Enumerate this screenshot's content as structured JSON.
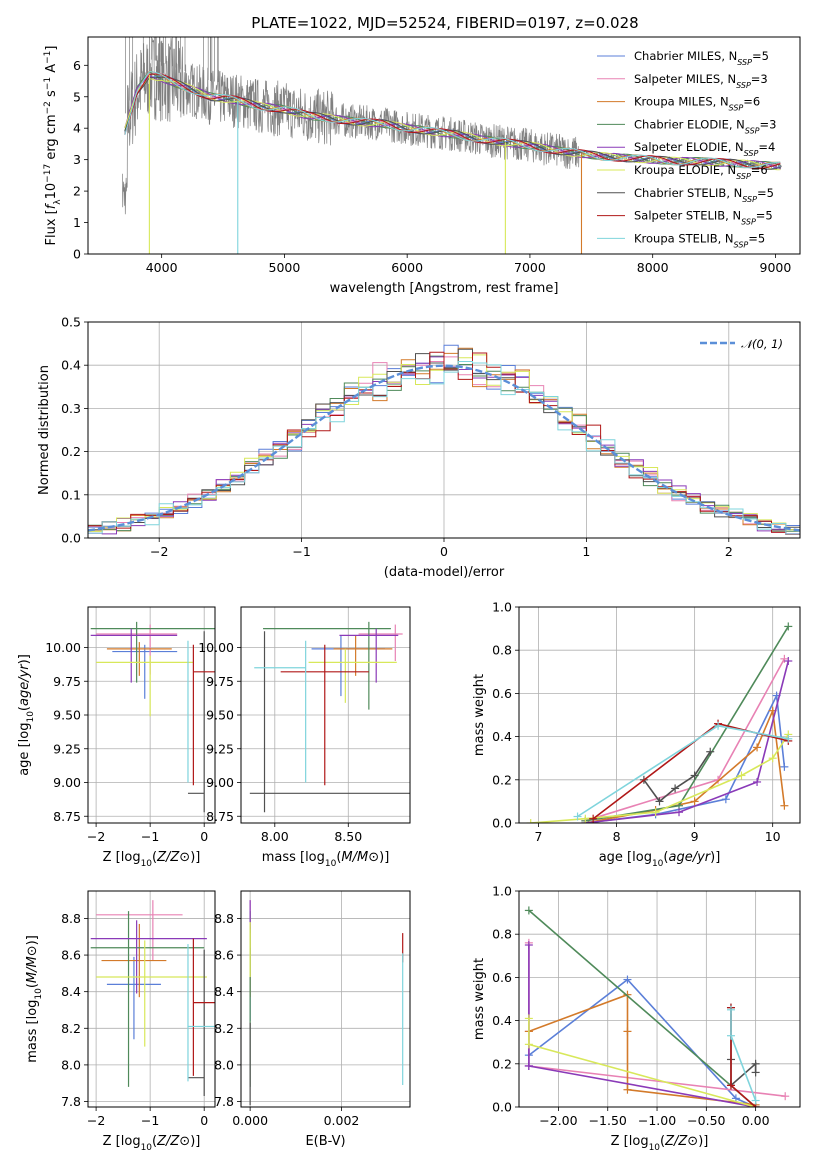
{
  "figure_title": "PLATE=1022, MJD=52524, FIBERID=0197, z=0.028",
  "colors": {
    "Chabrier MILES": "#5b7fd8",
    "Salpeter MILES": "#e882b4",
    "Kroupa MILES": "#d37a2a",
    "Chabrier ELODIE": "#4f8a5a",
    "Salpeter ELODIE": "#8a3ab8",
    "Kroupa ELODIE": "#d8e85a",
    "Chabrier STELIB": "#505050",
    "Salpeter STELIB": "#b01818",
    "Kroupa STELIB": "#7fd4dc",
    "data": "#808080"
  },
  "legend_spectrum": [
    {
      "name": "Chabrier MILES",
      "label": "Chabrier MILES, N",
      "sub": "SSP",
      "tail": "=5"
    },
    {
      "name": "Salpeter MILES",
      "label": "Salpeter MILES, N",
      "sub": "SSP",
      "tail": "=3"
    },
    {
      "name": "Kroupa MILES",
      "label": "Kroupa MILES, N",
      "sub": "SSP",
      "tail": "=6"
    },
    {
      "name": "Chabrier ELODIE",
      "label": "Chabrier ELODIE, N",
      "sub": "SSP",
      "tail": "=3"
    },
    {
      "name": "Salpeter ELODIE",
      "label": "Salpeter ELODIE, N",
      "sub": "SSP",
      "tail": "=4"
    },
    {
      "name": "Kroupa ELODIE",
      "label": "Kroupa ELODIE, N",
      "sub": "SSP",
      "tail": "=6"
    },
    {
      "name": "Chabrier STELIB",
      "label": "Chabrier STELIB, N",
      "sub": "SSP",
      "tail": "=5"
    },
    {
      "name": "Salpeter STELIB",
      "label": "Salpeter STELIB, N",
      "sub": "SSP",
      "tail": "=5"
    },
    {
      "name": "Kroupa STELIB",
      "label": "Kroupa STELIB, N",
      "sub": "SSP",
      "tail": "=5"
    }
  ],
  "chart_data": [
    {
      "id": "spectrum",
      "type": "line",
      "title": "PLATE=1022, MJD=52524, FIBERID=0197, z=0.028",
      "xlabel": "wavelength [Angstrom, rest frame]",
      "ylabel_parts": [
        "Flux [",
        "f",
        "λ",
        "10",
        "−17",
        " erg cm",
        "−2",
        " s",
        "−1",
        " A",
        "−1",
        "]"
      ],
      "xlim": [
        3400,
        9200
      ],
      "ylim": [
        0,
        6.9
      ],
      "xticks": [
        4000,
        5000,
        6000,
        7000,
        8000,
        9000
      ],
      "yticks": [
        0,
        1,
        2,
        3,
        4,
        5,
        6
      ],
      "continuum_anchor_x": [
        3700,
        3800,
        3900,
        4000,
        4200,
        4400,
        4600,
        4800,
        5000,
        5200,
        5400,
        5600,
        5800,
        6000,
        6200,
        6400,
        6600,
        6800,
        7000,
        7200,
        7400,
        7600,
        7800,
        8000,
        8200,
        8400,
        8600,
        8800,
        9000
      ],
      "continuum_anchor_y": [
        3.9,
        5.2,
        5.7,
        5.6,
        5.3,
        5.0,
        4.9,
        4.7,
        4.6,
        4.4,
        4.3,
        4.2,
        4.15,
        4.0,
        3.9,
        3.8,
        3.65,
        3.55,
        3.45,
        3.3,
        3.2,
        3.1,
        3.05,
        3.0,
        2.95,
        2.95,
        2.9,
        2.85,
        2.8
      ],
      "model_cutoffs": [
        {
          "series": "Kroupa MILES",
          "x": 7420
        },
        {
          "series": "Kroupa ELODIE",
          "x": 6800
        },
        {
          "series": "Kroupa STELIB",
          "x": 4620
        },
        {
          "series": "Kroupa ELODIE",
          "x": 3900
        }
      ]
    },
    {
      "id": "residuals",
      "type": "histogram",
      "xlabel": "(data-model)/error",
      "ylabel": "Normed distribution",
      "xlim": [
        -2.5,
        2.5
      ],
      "ylim": [
        0,
        0.5
      ],
      "xticks": [
        -2,
        -1,
        0,
        1,
        2
      ],
      "yticks": [
        0.0,
        0.1,
        0.2,
        0.3,
        0.4,
        0.5
      ],
      "legend": "𝒩(0, 1)",
      "bin_width": 0.1,
      "grid": true
    },
    {
      "id": "age_vs_Z",
      "type": "errorbar",
      "xlabel": "Z [log10(Z/Z⊙)]",
      "ylabel": "age  [log10(age/yr)]",
      "xlim": [
        -2.15,
        0.2
      ],
      "ylim": [
        8.7,
        10.3
      ],
      "xticks": [
        -2,
        -1,
        0
      ],
      "yticks": [
        8.75,
        9.0,
        9.25,
        9.5,
        9.75,
        10.0
      ],
      "points": [
        {
          "series": "Chabrier MILES",
          "x": -1.1,
          "xerr": [
            0.6,
            0.6
          ],
          "y": 9.97,
          "yerr": [
            0.35,
            0.05
          ]
        },
        {
          "series": "Salpeter MILES",
          "x": -1.0,
          "xerr": [
            1.0,
            0.5
          ],
          "y": 10.1,
          "yerr": [
            0.3,
            0.07
          ]
        },
        {
          "series": "Kroupa MILES",
          "x": -1.2,
          "xerr": [
            0.6,
            0.6
          ],
          "y": 9.99,
          "yerr": [
            0.2,
            0.05
          ]
        },
        {
          "series": "Chabrier ELODIE",
          "x": -1.25,
          "xerr": [
            0.85,
            1.45
          ],
          "y": 10.14,
          "yerr": [
            0.4,
            0.05
          ]
        },
        {
          "series": "Salpeter ELODIE",
          "x": -1.35,
          "xerr": [
            0.75,
            0.85
          ],
          "y": 10.09,
          "yerr": [
            0.35,
            0.05
          ]
        },
        {
          "series": "Kroupa ELODIE",
          "x": -1.0,
          "xerr": [
            1.0,
            0.8
          ],
          "y": 9.89,
          "yerr": [
            0.4,
            0.05
          ]
        },
        {
          "series": "Chabrier STELIB",
          "x": 0.0,
          "xerr": [
            0.3,
            0.0
          ],
          "y": 8.92,
          "yerr": [
            0.14,
            1.2
          ]
        },
        {
          "series": "Salpeter STELIB",
          "x": -0.2,
          "xerr": [
            0.0,
            0.4
          ],
          "y": 9.82,
          "yerr": [
            0.84,
            0.2
          ]
        },
        {
          "series": "Kroupa STELIB",
          "x": -0.3,
          "xerr": [
            0.0,
            0.0
          ],
          "y": 9.85,
          "yerr": [
            0.85,
            0.2
          ]
        }
      ]
    },
    {
      "id": "age_vs_mass",
      "type": "errorbar",
      "xlabel": "mass [log10(M/M⊙)]",
      "ylabel": "",
      "xlim": [
        7.77,
        8.92
      ],
      "ylim": [
        8.7,
        10.3
      ],
      "xticks": [
        8.0,
        8.5
      ],
      "yticks": [
        8.75,
        9.0,
        9.25,
        9.5,
        9.75,
        10.0
      ],
      "points": [
        {
          "series": "Chabrier MILES",
          "x": 8.45,
          "xerr": [
            0.2,
            0.3
          ],
          "y": 9.99,
          "yerr": [
            0.35,
            0.1
          ]
        },
        {
          "series": "Salpeter MILES",
          "x": 8.82,
          "xerr": [
            0.25,
            0.05
          ],
          "y": 10.1,
          "yerr": [
            0.2,
            0.07
          ]
        },
        {
          "series": "Kroupa MILES",
          "x": 8.55,
          "xerr": [
            0.15,
            0.25
          ],
          "y": 9.99,
          "yerr": [
            0.2,
            0.1
          ]
        },
        {
          "series": "Chabrier ELODIE",
          "x": 8.64,
          "xerr": [
            0.72,
            0.15
          ],
          "y": 10.14,
          "yerr": [
            0.6,
            0.05
          ]
        },
        {
          "series": "Salpeter ELODIE",
          "x": 8.69,
          "xerr": [
            0.25,
            0.15
          ],
          "y": 10.09,
          "yerr": [
            0.35,
            0.05
          ]
        },
        {
          "series": "Kroupa ELODIE",
          "x": 8.48,
          "xerr": [
            0.25,
            0.35
          ],
          "y": 9.89,
          "yerr": [
            0.3,
            0.1
          ]
        },
        {
          "series": "Chabrier STELIB",
          "x": 7.93,
          "xerr": [
            0.1,
            1.05
          ],
          "y": 8.92,
          "yerr": [
            0.14,
            1.2
          ]
        },
        {
          "series": "Salpeter STELIB",
          "x": 8.34,
          "xerr": [
            0.3,
            0.3
          ],
          "y": 9.82,
          "yerr": [
            0.84,
            0.2
          ]
        },
        {
          "series": "Kroupa STELIB",
          "x": 8.21,
          "xerr": [
            0.35,
            0.0
          ],
          "y": 9.85,
          "yerr": [
            0.85,
            0.2
          ]
        }
      ]
    },
    {
      "id": "mass_weight_vs_age",
      "type": "line",
      "xlabel": "age  [log10(age/yr)]",
      "ylabel": "mass weight",
      "xlim": [
        6.75,
        10.35
      ],
      "ylim": [
        0,
        1.0
      ],
      "xticks": [
        7,
        8,
        9,
        10
      ],
      "yticks": [
        0.0,
        0.2,
        0.4,
        0.6,
        0.8,
        1.0
      ],
      "series": [
        {
          "series": "Chabrier MILES",
          "x": [
            7.6,
            8.5,
            9.4,
            10.05,
            10.15
          ],
          "y": [
            0.0,
            0.04,
            0.11,
            0.59,
            0.26
          ]
        },
        {
          "series": "Salpeter MILES",
          "x": [
            7.6,
            9.3,
            10.15
          ],
          "y": [
            0.01,
            0.2,
            0.76
          ]
        },
        {
          "series": "Kroupa MILES",
          "x": [
            7.6,
            8.5,
            9.0,
            9.8,
            10.0,
            10.15
          ],
          "y": [
            0.0,
            0.06,
            0.1,
            0.35,
            0.52,
            0.08
          ]
        },
        {
          "series": "Chabrier ELODIE",
          "x": [
            7.6,
            8.8,
            10.2
          ],
          "y": [
            0.01,
            0.08,
            0.91
          ]
        },
        {
          "series": "Salpeter ELODIE",
          "x": [
            7.6,
            8.8,
            9.8,
            10.2
          ],
          "y": [
            0.0,
            0.05,
            0.19,
            0.75
          ]
        },
        {
          "series": "Kroupa ELODIE",
          "x": [
            6.9,
            7.6,
            8.5,
            9.6,
            10.0,
            10.2
          ],
          "y": [
            0.0,
            0.02,
            0.05,
            0.22,
            0.3,
            0.41
          ]
        },
        {
          "series": "Chabrier STELIB",
          "x": [
            8.35,
            8.55,
            8.75,
            9.0,
            9.2
          ],
          "y": [
            0.2,
            0.1,
            0.16,
            0.22,
            0.33
          ]
        },
        {
          "series": "Salpeter STELIB",
          "x": [
            7.7,
            9.3,
            10.2
          ],
          "y": [
            0.02,
            0.46,
            0.38
          ]
        },
        {
          "series": "Kroupa STELIB",
          "x": [
            7.5,
            9.3,
            10.2
          ],
          "y": [
            0.03,
            0.45,
            0.39
          ]
        }
      ]
    },
    {
      "id": "mass_vs_Z",
      "type": "errorbar",
      "xlabel": "Z [log10(Z/Z⊙)]",
      "ylabel": "mass [log10(M/M⊙)]",
      "xlim": [
        -2.15,
        0.2
      ],
      "ylim": [
        7.77,
        8.95
      ],
      "xticks": [
        -2,
        -1,
        0
      ],
      "yticks": [
        7.8,
        8.0,
        8.2,
        8.4,
        8.6,
        8.8
      ],
      "points": [
        {
          "series": "Chabrier MILES",
          "x": -1.3,
          "xerr": [
            0.5,
            0.5
          ],
          "y": 8.44,
          "yerr": [
            0.3,
            0.15
          ]
        },
        {
          "series": "Salpeter MILES",
          "x": -0.95,
          "xerr": [
            1.05,
            0.55
          ],
          "y": 8.82,
          "yerr": [
            0.25,
            0.08
          ]
        },
        {
          "series": "Kroupa MILES",
          "x": -1.2,
          "xerr": [
            0.7,
            0.5
          ],
          "y": 8.57,
          "yerr": [
            0.2,
            0.2
          ]
        },
        {
          "series": "Chabrier ELODIE",
          "x": -1.4,
          "xerr": [
            0.7,
            1.4
          ],
          "y": 8.64,
          "yerr": [
            0.76,
            0.2
          ]
        },
        {
          "series": "Salpeter ELODIE",
          "x": -1.25,
          "xerr": [
            0.85,
            1.3
          ],
          "y": 8.69,
          "yerr": [
            0.3,
            0.1
          ]
        },
        {
          "series": "Kroupa ELODIE",
          "x": -1.1,
          "xerr": [
            0.9,
            1.15
          ],
          "y": 8.48,
          "yerr": [
            0.38,
            0.2
          ]
        },
        {
          "series": "Chabrier STELIB",
          "x": 0.0,
          "xerr": [
            0.3,
            0.0
          ],
          "y": 7.93,
          "yerr": [
            0.1,
            0.7
          ]
        },
        {
          "series": "Salpeter STELIB",
          "x": -0.2,
          "xerr": [
            0.0,
            0.4
          ],
          "y": 8.34,
          "yerr": [
            0.4,
            0.35
          ]
        },
        {
          "series": "Kroupa STELIB",
          "x": -0.3,
          "xerr": [
            0.0,
            0.5
          ],
          "y": 8.21,
          "yerr": [
            0.3,
            0.45
          ]
        }
      ]
    },
    {
      "id": "mass_vs_ebv",
      "type": "errorbar",
      "xlabel": "E(B-V)",
      "ylabel": "",
      "xlim": [
        -0.0002,
        0.0035
      ],
      "ylim": [
        7.77,
        8.95
      ],
      "xticks": [
        0.0,
        0.002
      ],
      "xticklabels": [
        "0.000",
        "0.002"
      ],
      "yticks": [
        7.8,
        8.0,
        8.2,
        8.4,
        8.6,
        8.8
      ],
      "points": [
        {
          "series": "Chabrier MILES",
          "x": 0.0,
          "y": 8.44,
          "yerr": [
            0.2,
            0.2
          ]
        },
        {
          "series": "Salpeter MILES",
          "x": 0.0,
          "y": 8.82,
          "yerr": [
            0.1,
            0.08
          ]
        },
        {
          "series": "Kroupa MILES",
          "x": 0.0,
          "y": 8.57,
          "yerr": [
            0.2,
            0.2
          ]
        },
        {
          "series": "Chabrier ELODIE",
          "x": 0.0,
          "y": 8.64,
          "yerr": [
            0.76,
            0.2
          ]
        },
        {
          "series": "Salpeter ELODIE",
          "x": 0.0,
          "y": 8.82,
          "yerr": [
            0.08,
            0.08
          ]
        },
        {
          "series": "Kroupa ELODIE",
          "x": 0.0,
          "y": 8.68,
          "yerr": [
            0.2,
            0.1
          ]
        },
        {
          "series": "Chabrier STELIB",
          "x": 0.0,
          "y": 7.93,
          "yerr": [
            0.15,
            0.3
          ]
        },
        {
          "series": "Salpeter STELIB",
          "x": 0.00334,
          "y": 8.66,
          "yerr": [
            0.1,
            0.06
          ]
        },
        {
          "series": "Kroupa STELIB",
          "x": 0.00334,
          "y": 8.21,
          "yerr": [
            0.32,
            0.4
          ]
        }
      ]
    },
    {
      "id": "mass_weight_vs_Z",
      "type": "line",
      "xlabel": "Z [log10(Z/Z⊙)]",
      "ylabel": "mass weight",
      "xlim": [
        -2.4,
        0.45
      ],
      "ylim": [
        0,
        1.0
      ],
      "xticks": [
        -2.0,
        -1.5,
        -1.0,
        -0.5,
        0.0
      ],
      "yticks": [
        0.0,
        0.2,
        0.4,
        0.6,
        0.8,
        1.0
      ],
      "series": [
        {
          "series": "Chabrier MILES",
          "x": [
            -2.3,
            -1.3,
            -0.2,
            0.0
          ],
          "y": [
            0.24,
            0.59,
            0.04,
            0.0
          ]
        },
        {
          "series": "Salpeter MILES",
          "x": [
            -2.3,
            -2.3,
            -2.3,
            0.3
          ],
          "y": [
            0.76,
            0.35,
            0.19,
            0.05
          ]
        },
        {
          "series": "Kroupa MILES",
          "x": [
            -2.3,
            -1.3,
            -1.3,
            -1.3,
            0.0
          ],
          "y": [
            0.35,
            0.52,
            0.35,
            0.08,
            0.01
          ]
        },
        {
          "series": "Chabrier ELODIE",
          "x": [
            -2.3,
            0.0
          ],
          "y": [
            0.91,
            0.0
          ]
        },
        {
          "series": "Salpeter ELODIE",
          "x": [
            -2.3,
            -2.3,
            -2.3,
            0.0
          ],
          "y": [
            0.75,
            0.19,
            0.19,
            0.0
          ]
        },
        {
          "series": "Kroupa ELODIE",
          "x": [
            -2.3,
            -2.3,
            0.0
          ],
          "y": [
            0.41,
            0.29,
            0.0
          ]
        },
        {
          "series": "Chabrier STELIB",
          "x": [
            -0.25,
            -0.25,
            -0.25,
            0.0,
            0.0
          ],
          "y": [
            0.46,
            0.22,
            0.1,
            0.2,
            0.16
          ]
        },
        {
          "series": "Salpeter STELIB",
          "x": [
            -0.25,
            -0.25,
            0.0
          ],
          "y": [
            0.46,
            0.1,
            0.0
          ]
        },
        {
          "series": "Kroupa STELIB",
          "x": [
            -0.25,
            -0.25,
            0.0
          ],
          "y": [
            0.45,
            0.33,
            0.03
          ]
        }
      ]
    }
  ]
}
